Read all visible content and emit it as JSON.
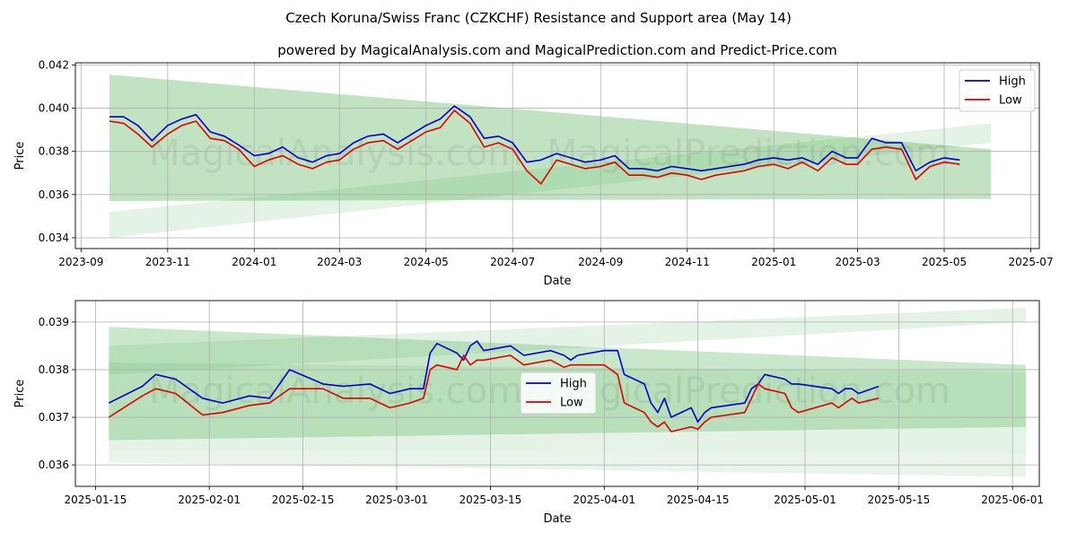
{
  "title": "Czech Koruna/Swiss Franc (CZKCHF) Resistance and Support area (May 14)",
  "subtitle": "powered by MagicalAnalysis.com and MagicalPrediction.com and Predict-Price.com",
  "watermark_left": "MagicalAnalysis.com",
  "watermark_right": "MagicalPrediction.com",
  "colors": {
    "high": "#0000cc",
    "low": "#dd0000",
    "band": "#4caf50",
    "grid": "#b0b0b0"
  },
  "chart_data": [
    {
      "type": "line",
      "xlabel": "Date",
      "ylabel": "Price",
      "xlim": [
        "2023-08-28",
        "2025-07-07"
      ],
      "ylim": [
        0.0335,
        0.0421
      ],
      "x_ticks": [
        "2023-09",
        "2023-11",
        "2024-01",
        "2024-03",
        "2024-05",
        "2024-07",
        "2024-09",
        "2024-11",
        "2025-01",
        "2025-03",
        "2025-05",
        "2025-07"
      ],
      "x_tick_dates": [
        "2023-09-01",
        "2023-11-01",
        "2024-01-01",
        "2024-03-01",
        "2024-05-01",
        "2024-07-01",
        "2024-09-01",
        "2024-11-01",
        "2025-01-01",
        "2025-03-01",
        "2025-05-01",
        "2025-07-01"
      ],
      "y_ticks": [
        "0.034",
        "0.036",
        "0.038",
        "0.040",
        "0.042"
      ],
      "y_tick_values": [
        0.034,
        0.036,
        0.038,
        0.04,
        0.042
      ],
      "grid": true,
      "legend": {
        "position": "top-right",
        "entries": [
          "High",
          "Low"
        ]
      },
      "bands": [
        {
          "start": "2023-09-21",
          "end": "2025-06-03",
          "upper": [
            0.04155,
            0.0381
          ],
          "lower": [
            0.0373,
            0.0369
          ]
        },
        {
          "start": "2023-09-21",
          "end": "2025-06-03",
          "upper": [
            0.0373,
            0.0369
          ],
          "lower": [
            0.0357,
            0.0358
          ]
        },
        {
          "start": "2023-09-21",
          "end": "2025-06-03",
          "upper": [
            0.0352,
            0.0393
          ],
          "lower": [
            0.034,
            0.0384
          ]
        }
      ],
      "series": [
        {
          "name": "High",
          "x": [
            "2023-09-21",
            "2023-10-01",
            "2023-10-11",
            "2023-10-21",
            "2023-11-01",
            "2023-11-11",
            "2023-11-21",
            "2023-12-01",
            "2023-12-11",
            "2023-12-21",
            "2024-01-01",
            "2024-01-11",
            "2024-01-21",
            "2024-02-01",
            "2024-02-11",
            "2024-02-21",
            "2024-03-01",
            "2024-03-11",
            "2024-03-21",
            "2024-04-01",
            "2024-04-11",
            "2024-04-21",
            "2024-05-01",
            "2024-05-11",
            "2024-05-21",
            "2024-06-01",
            "2024-06-11",
            "2024-06-21",
            "2024-07-01",
            "2024-07-11",
            "2024-07-21",
            "2024-08-01",
            "2024-08-11",
            "2024-08-21",
            "2024-09-01",
            "2024-09-11",
            "2024-09-21",
            "2024-10-01",
            "2024-10-11",
            "2024-10-21",
            "2024-11-01",
            "2024-11-11",
            "2024-11-21",
            "2024-12-01",
            "2024-12-11",
            "2024-12-21",
            "2025-01-01",
            "2025-01-11",
            "2025-01-21",
            "2025-02-01",
            "2025-02-11",
            "2025-02-21",
            "2025-03-01",
            "2025-03-11",
            "2025-03-21",
            "2025-04-01",
            "2025-04-11",
            "2025-04-21",
            "2025-05-01",
            "2025-05-12"
          ],
          "values": [
            0.0396,
            0.0396,
            0.0392,
            0.0385,
            0.0392,
            0.0395,
            0.0397,
            0.0389,
            0.0387,
            0.0383,
            0.0378,
            0.0379,
            0.0382,
            0.0377,
            0.0375,
            0.0378,
            0.0379,
            0.0384,
            0.0387,
            0.0388,
            0.0384,
            0.0388,
            0.0392,
            0.0395,
            0.0401,
            0.0396,
            0.0386,
            0.0387,
            0.0384,
            0.0375,
            0.0376,
            0.0379,
            0.0377,
            0.0375,
            0.0376,
            0.0378,
            0.0372,
            0.0372,
            0.0371,
            0.0373,
            0.0372,
            0.0371,
            0.0372,
            0.0373,
            0.0374,
            0.0376,
            0.0377,
            0.0376,
            0.0377,
            0.0374,
            0.038,
            0.0377,
            0.0377,
            0.0386,
            0.0384,
            0.0384,
            0.0371,
            0.0375,
            0.0377,
            0.0376
          ]
        },
        {
          "name": "Low",
          "x": [
            "2023-09-21",
            "2023-10-01",
            "2023-10-11",
            "2023-10-21",
            "2023-11-01",
            "2023-11-11",
            "2023-11-21",
            "2023-12-01",
            "2023-12-11",
            "2023-12-21",
            "2024-01-01",
            "2024-01-11",
            "2024-01-21",
            "2024-02-01",
            "2024-02-11",
            "2024-02-21",
            "2024-03-01",
            "2024-03-11",
            "2024-03-21",
            "2024-04-01",
            "2024-04-11",
            "2024-04-21",
            "2024-05-01",
            "2024-05-11",
            "2024-05-21",
            "2024-06-01",
            "2024-06-11",
            "2024-06-21",
            "2024-07-01",
            "2024-07-11",
            "2024-07-21",
            "2024-08-01",
            "2024-08-11",
            "2024-08-21",
            "2024-09-01",
            "2024-09-11",
            "2024-09-21",
            "2024-10-01",
            "2024-10-11",
            "2024-10-21",
            "2024-11-01",
            "2024-11-11",
            "2024-11-21",
            "2024-12-01",
            "2024-12-11",
            "2024-12-21",
            "2025-01-01",
            "2025-01-11",
            "2025-01-21",
            "2025-02-01",
            "2025-02-11",
            "2025-02-21",
            "2025-03-01",
            "2025-03-11",
            "2025-03-21",
            "2025-04-01",
            "2025-04-11",
            "2025-04-21",
            "2025-05-01",
            "2025-05-12"
          ],
          "values": [
            0.0394,
            0.0393,
            0.0388,
            0.0382,
            0.0388,
            0.0392,
            0.0394,
            0.0386,
            0.0385,
            0.0381,
            0.0373,
            0.0376,
            0.0378,
            0.0374,
            0.0372,
            0.0375,
            0.0376,
            0.0381,
            0.0384,
            0.0385,
            0.0381,
            0.0385,
            0.0389,
            0.0391,
            0.0399,
            0.0393,
            0.0382,
            0.0384,
            0.0381,
            0.0371,
            0.0365,
            0.0376,
            0.0374,
            0.0372,
            0.0373,
            0.0375,
            0.0369,
            0.0369,
            0.0368,
            0.037,
            0.0369,
            0.0367,
            0.0369,
            0.037,
            0.0371,
            0.0373,
            0.0374,
            0.0372,
            0.0375,
            0.0371,
            0.0377,
            0.0374,
            0.0374,
            0.0381,
            0.0382,
            0.0381,
            0.0367,
            0.0373,
            0.0375,
            0.0374
          ]
        }
      ]
    },
    {
      "type": "line",
      "xlabel": "Date",
      "ylabel": "Price",
      "xlim": [
        "2025-01-12",
        "2025-06-05"
      ],
      "ylim": [
        0.03555,
        0.03945
      ],
      "x_ticks": [
        "2025-01-15",
        "2025-02-01",
        "2025-02-15",
        "2025-03-01",
        "2025-03-15",
        "2025-04-01",
        "2025-04-15",
        "2025-05-01",
        "2025-05-15",
        "2025-06-01"
      ],
      "x_tick_dates": [
        "2025-01-15",
        "2025-02-01",
        "2025-02-15",
        "2025-03-01",
        "2025-03-15",
        "2025-04-01",
        "2025-04-15",
        "2025-05-01",
        "2025-05-15",
        "2025-06-01"
      ],
      "y_ticks": [
        "0.036",
        "0.037",
        "0.038",
        "0.039"
      ],
      "y_tick_values": [
        0.036,
        0.037,
        0.038,
        0.039
      ],
      "grid": true,
      "legend": {
        "position": "center",
        "entries": [
          "High",
          "Low"
        ]
      },
      "bands": [
        {
          "start": "2025-01-17",
          "end": "2025-06-03",
          "upper": [
            0.0389,
            0.0381
          ],
          "lower": [
            0.03815,
            0.03795
          ]
        },
        {
          "start": "2025-01-17",
          "end": "2025-06-03",
          "upper": [
            0.03815,
            0.03795
          ],
          "lower": [
            0.03652,
            0.0368
          ]
        },
        {
          "start": "2025-01-17",
          "end": "2025-06-03",
          "upper": [
            0.03652,
            0.0368
          ],
          "lower": [
            0.0363,
            0.03625
          ]
        },
        {
          "start": "2025-01-17",
          "end": "2025-06-03",
          "upper": [
            0.0363,
            0.03625
          ],
          "lower": [
            0.03605,
            0.03575
          ]
        },
        {
          "start": "2025-01-17",
          "end": "2025-06-03",
          "upper": [
            0.0385,
            0.0393
          ],
          "lower": [
            0.0379,
            0.039
          ]
        }
      ],
      "series": [
        {
          "name": "High",
          "x": [
            "2025-01-17",
            "2025-01-22",
            "2025-01-24",
            "2025-01-27",
            "2025-01-31",
            "2025-02-03",
            "2025-02-07",
            "2025-02-10",
            "2025-02-13",
            "2025-02-18",
            "2025-02-21",
            "2025-02-25",
            "2025-02-28",
            "2025-03-03",
            "2025-03-05",
            "2025-03-06",
            "2025-03-07",
            "2025-03-10",
            "2025-03-11",
            "2025-03-12",
            "2025-03-13",
            "2025-03-14",
            "2025-03-18",
            "2025-03-20",
            "2025-03-24",
            "2025-03-26",
            "2025-03-27",
            "2025-03-28",
            "2025-04-01",
            "2025-04-03",
            "2025-04-04",
            "2025-04-07",
            "2025-04-08",
            "2025-04-09",
            "2025-04-10",
            "2025-04-11",
            "2025-04-14",
            "2025-04-15",
            "2025-04-16",
            "2025-04-17",
            "2025-04-22",
            "2025-04-23",
            "2025-04-24",
            "2025-04-25",
            "2025-04-28",
            "2025-04-29",
            "2025-04-30",
            "2025-05-05",
            "2025-05-06",
            "2025-05-07",
            "2025-05-08",
            "2025-05-09",
            "2025-05-12"
          ],
          "values": [
            0.0373,
            0.03765,
            0.0379,
            0.0378,
            0.0374,
            0.0373,
            0.03745,
            0.0374,
            0.038,
            0.0377,
            0.03765,
            0.0377,
            0.0375,
            0.0376,
            0.0376,
            0.03835,
            0.03855,
            0.03835,
            0.0382,
            0.0385,
            0.0386,
            0.0384,
            0.0385,
            0.0383,
            0.0384,
            0.0383,
            0.0382,
            0.0383,
            0.0384,
            0.0384,
            0.0379,
            0.0377,
            0.0373,
            0.0371,
            0.0374,
            0.037,
            0.0372,
            0.0369,
            0.0371,
            0.0372,
            0.0373,
            0.0376,
            0.0377,
            0.0379,
            0.0378,
            0.0377,
            0.0377,
            0.0376,
            0.0375,
            0.0376,
            0.0376,
            0.0375,
            0.03765
          ]
        },
        {
          "name": "Low",
          "x": [
            "2025-01-17",
            "2025-01-22",
            "2025-01-24",
            "2025-01-27",
            "2025-01-31",
            "2025-02-03",
            "2025-02-07",
            "2025-02-10",
            "2025-02-13",
            "2025-02-18",
            "2025-02-21",
            "2025-02-25",
            "2025-02-28",
            "2025-03-03",
            "2025-03-05",
            "2025-03-06",
            "2025-03-07",
            "2025-03-10",
            "2025-03-11",
            "2025-03-12",
            "2025-03-13",
            "2025-03-14",
            "2025-03-18",
            "2025-03-20",
            "2025-03-24",
            "2025-03-26",
            "2025-03-27",
            "2025-03-28",
            "2025-04-01",
            "2025-04-03",
            "2025-04-04",
            "2025-04-07",
            "2025-04-08",
            "2025-04-09",
            "2025-04-10",
            "2025-04-11",
            "2025-04-14",
            "2025-04-15",
            "2025-04-16",
            "2025-04-17",
            "2025-04-22",
            "2025-04-23",
            "2025-04-24",
            "2025-04-25",
            "2025-04-28",
            "2025-04-29",
            "2025-04-30",
            "2025-05-05",
            "2025-05-06",
            "2025-05-07",
            "2025-05-08",
            "2025-05-09",
            "2025-05-12"
          ],
          "values": [
            0.037,
            0.03745,
            0.0376,
            0.0375,
            0.03705,
            0.0371,
            0.03725,
            0.0373,
            0.0376,
            0.0376,
            0.0374,
            0.0374,
            0.0372,
            0.0373,
            0.0374,
            0.038,
            0.0381,
            0.038,
            0.0383,
            0.0381,
            0.0382,
            0.0382,
            0.0383,
            0.0381,
            0.0382,
            0.03805,
            0.0381,
            0.0381,
            0.0381,
            0.0379,
            0.0373,
            0.0371,
            0.0369,
            0.0368,
            0.0369,
            0.0367,
            0.0368,
            0.03675,
            0.0369,
            0.037,
            0.0371,
            0.0374,
            0.0377,
            0.0376,
            0.0375,
            0.0372,
            0.0371,
            0.0373,
            0.0372,
            0.0373,
            0.0374,
            0.0373,
            0.0374
          ]
        }
      ]
    }
  ]
}
